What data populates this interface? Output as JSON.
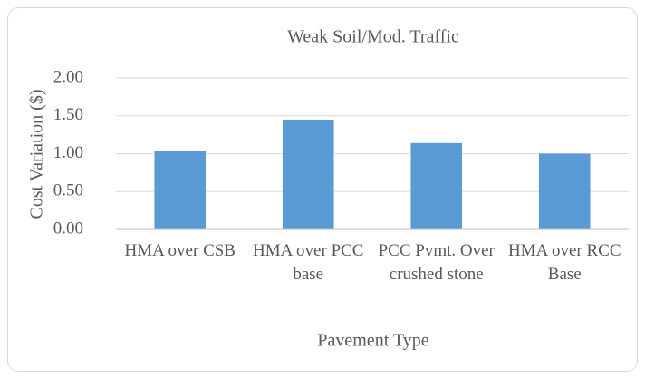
{
  "chart_data": {
    "type": "bar",
    "title": "Weak Soil/Mod. Traffic",
    "x_label": "Pavement Type",
    "y_label": "Cost Variation ($)",
    "categories": [
      "HMA over CSB",
      "HMA over PCC base",
      "PCC Pvmt. Over crushed stone",
      "HMA over RCC Base"
    ],
    "values": [
      1.03,
      1.45,
      1.14,
      1.0
    ],
    "color": "#5b9bd5",
    "ylim": [
      0,
      2
    ],
    "yticks": [
      {
        "value": 0,
        "label": "0.00"
      },
      {
        "value": 0.5,
        "label": "0.50"
      },
      {
        "value": 1,
        "label": "1.00"
      },
      {
        "value": 1.5,
        "label": "1.50"
      },
      {
        "value": 2,
        "label": "2.00"
      }
    ],
    "grid": true
  }
}
